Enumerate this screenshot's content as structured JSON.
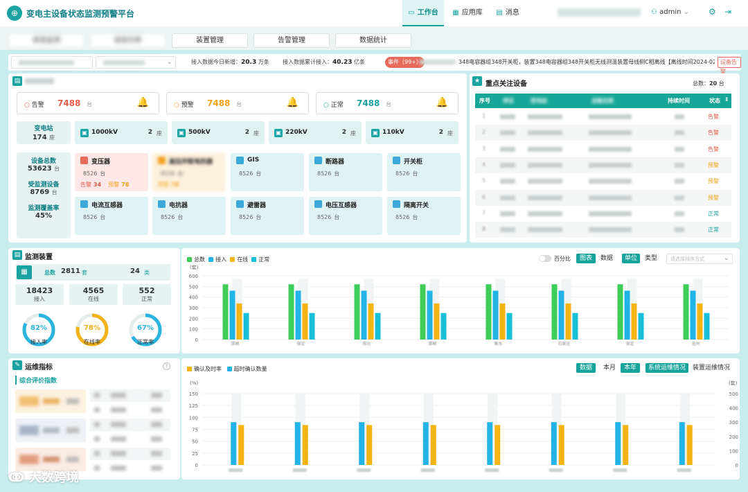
{
  "header": {
    "title": "变电主设备状态监测预警平台",
    "nav": [
      {
        "label": "工作台"
      },
      {
        "label": "应用库"
      },
      {
        "label": "消息"
      }
    ],
    "user": "admin"
  },
  "tabs": [
    "状态监测",
    "状态分析",
    "装置管理",
    "告警管理",
    "数据统计"
  ],
  "filters": {
    "today_label": "接入数据今日新增：",
    "today_value": "20.3",
    "today_unit": "万条",
    "total_label": "接入数据累计接入：",
    "total_value": "40.23",
    "total_unit": "亿条",
    "event_badge": "事件（99+）",
    "event_text": "348电容器组348开关柜，装置348电容器组348开关柜无线测温装置母线侧C相离线【离线时间2024-02 ...",
    "event_button": "设备告警"
  },
  "device_overview": {
    "alerts": [
      {
        "label": "告警",
        "value": "7488",
        "unit": "台",
        "color": "#e25b4b"
      },
      {
        "label": "预警",
        "value": "7488",
        "unit": "台",
        "color": "#f0a21a"
      },
      {
        "label": "正常",
        "value": "7488",
        "unit": "台",
        "color": "#1aa3a0"
      }
    ],
    "substation": {
      "label": "变电站",
      "value": "174",
      "unit": "座"
    },
    "voltages": [
      {
        "label": "1000kV",
        "value": "2",
        "unit": "座"
      },
      {
        "label": "500kV",
        "value": "2",
        "unit": "座"
      },
      {
        "label": "220kV",
        "value": "2",
        "unit": "座"
      },
      {
        "label": "110kV",
        "value": "2",
        "unit": "座"
      }
    ],
    "total": {
      "label": "设备总数",
      "value": "53623",
      "unit": "台"
    },
    "monitored": {
      "label": "受监测设备",
      "value": "8769",
      "unit": "台"
    },
    "coverage": {
      "label": "监测覆盖率",
      "value": "45%"
    },
    "devices": [
      {
        "label": "变压器",
        "value": "8526",
        "unit": "台",
        "alarm_label": "告警",
        "alarm": "34",
        "warn_label": "预警",
        "warn": "78"
      },
      {
        "label": "高压并联电抗器",
        "value": "8526",
        "unit": "台",
        "warn_label": "预警",
        "warn": "78"
      },
      {
        "label": "GIS",
        "value": "8526",
        "unit": "台"
      },
      {
        "label": "断路器",
        "value": "8526",
        "unit": "台"
      },
      {
        "label": "开关柜",
        "value": "8526",
        "unit": "台"
      },
      {
        "label": "电流互感器",
        "value": "8526",
        "unit": "台"
      },
      {
        "label": "电抗器",
        "value": "8526",
        "unit": "台"
      },
      {
        "label": "避雷器",
        "value": "8526",
        "unit": "台"
      },
      {
        "label": "电压互感器",
        "value": "8526",
        "unit": "台"
      },
      {
        "label": "隔离开关",
        "value": "8526",
        "unit": "台"
      }
    ]
  },
  "focus": {
    "title": "重点关注设备",
    "total_label": "总数：",
    "total": "20",
    "unit": "台",
    "columns": [
      "序号",
      "单位",
      "变电站",
      "设备名称",
      "持续时间",
      "状态"
    ],
    "rows": [
      {
        "no": "1",
        "status": "告警",
        "color": "#e25b4b"
      },
      {
        "no": "2",
        "status": "告警",
        "color": "#e25b4b"
      },
      {
        "no": "3",
        "status": "告警",
        "color": "#e25b4b"
      },
      {
        "no": "4",
        "status": "预警",
        "color": "#f0a21a"
      },
      {
        "no": "5",
        "status": "预警",
        "color": "#f0a21a"
      },
      {
        "no": "6",
        "status": "预警",
        "color": "#f0a21a"
      },
      {
        "no": "7",
        "status": "正常",
        "color": "#1aa3a0"
      },
      {
        "no": "8",
        "status": "正常",
        "color": "#1aa3a0"
      }
    ]
  },
  "monitor": {
    "title": "监测装置",
    "total_label": "总数",
    "total": "2811",
    "total_unit": "套",
    "types": "24",
    "types_unit": "类",
    "stats": [
      {
        "value": "18423",
        "label": "接入"
      },
      {
        "value": "4565",
        "label": "在线"
      },
      {
        "value": "552",
        "label": "正常"
      }
    ],
    "gauges": [
      {
        "value": 0.82,
        "text": "82%",
        "label": "接入率",
        "color": "#2bb4e0"
      },
      {
        "value": 0.78,
        "text": "78%",
        "label": "在线率",
        "color": "#f2b21a"
      },
      {
        "value": 0.67,
        "text": "67%",
        "label": "正常率",
        "color": "#2bb4e0"
      }
    ],
    "controls": {
      "percent": "百分比",
      "chart": "图表",
      "data": "数据",
      "unit": "单位",
      "type": "类型",
      "sort_placeholder": "请选择排序方式"
    }
  },
  "ops": {
    "title": "运维指标",
    "subtitle": "综合评价指数",
    "legend": [
      "确认及时率",
      "超时确认数量"
    ],
    "buttons": [
      "数据",
      "本月",
      "本年",
      "系统运维情况",
      "装置运维情况"
    ]
  },
  "colors": {
    "accent": "#1aa3a0",
    "green": "#3fcd5a",
    "blue": "#22b4e6",
    "orange": "#f4b414",
    "cyan": "#17c0d6"
  },
  "watermark": "大数跨境",
  "chart_data": [
    {
      "type": "bar",
      "categories": [
        "邯郸",
        "保定",
        "邢台",
        "邯郸",
        "衡水",
        "石家庄",
        "保定",
        "沧州"
      ],
      "series": [
        {
          "name": "总数",
          "values": [
            520,
            520,
            520,
            520,
            520,
            520,
            520,
            520
          ]
        },
        {
          "name": "接入",
          "values": [
            460,
            460,
            460,
            460,
            460,
            460,
            460,
            460
          ]
        },
        {
          "name": "在线",
          "values": [
            340,
            340,
            340,
            340,
            340,
            340,
            340,
            340
          ]
        },
        {
          "name": "正常",
          "values": [
            250,
            250,
            250,
            250,
            250,
            250,
            250,
            250
          ]
        }
      ],
      "ylabel": "(套)",
      "yticks": [
        0,
        100,
        200,
        300,
        400,
        500,
        600
      ],
      "ylim": [
        0,
        600
      ]
    },
    {
      "type": "bar",
      "categories": [
        "",
        "",
        "",
        "",
        "",
        "",
        "",
        ""
      ],
      "series": [
        {
          "name": "确认及时率",
          "axis": "left",
          "values": [
            90,
            90,
            90,
            90,
            90,
            90,
            90,
            90
          ]
        },
        {
          "name": "超时确认数量",
          "axis": "right",
          "values": [
            280,
            280,
            280,
            280,
            280,
            280,
            280,
            280
          ]
        }
      ],
      "ylabel_left": "(%)",
      "yticks_left": [
        0,
        25,
        50,
        75,
        100,
        125,
        150
      ],
      "ylabel_right": "(套)",
      "yticks_right": [
        0,
        100,
        200,
        300,
        400,
        500
      ]
    }
  ]
}
